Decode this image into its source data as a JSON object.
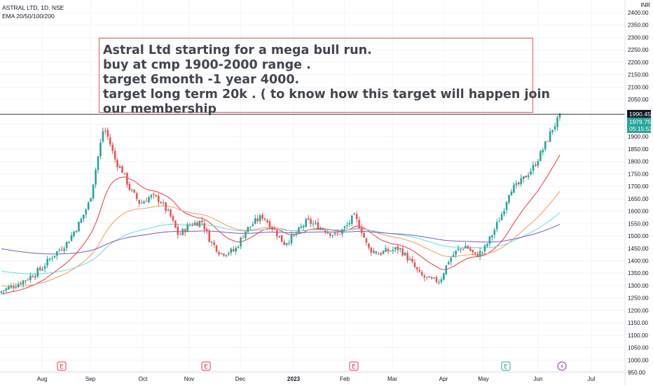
{
  "header": {
    "symbol_line": "ASTRAL LTD, 1D, NSE",
    "indicator_line": "EMA 20/50/100/200"
  },
  "annotation": {
    "lines": [
      "Astral Ltd starting for  a mega bull run.",
      "buy at cmp 1900-2000 range .",
      "target 6month -1 year 4000.",
      "target long term 20k . ( to know how this target will happen join",
      "our membership"
    ]
  },
  "price_axis": {
    "currency": "INR",
    "ticks": [
      2400,
      2350,
      2300,
      2250,
      2200,
      2150,
      2100,
      2050,
      2000,
      1950,
      1900,
      1850,
      1800,
      1750,
      1700,
      1650,
      1600,
      1550,
      1500,
      1450,
      1400,
      1350,
      1300,
      1250,
      1200,
      1150,
      1100,
      1050,
      1000,
      950
    ],
    "tick_labels": [
      "2400.00",
      "2350.00",
      "2300.00",
      "2250.00",
      "2200.00",
      "2150.00",
      "2100.00",
      "2050.00",
      "2000.00",
      "1950.00",
      "1900.00",
      "1850.00",
      "1800.00",
      "1750.00",
      "1700.00",
      "1650.00",
      "1600.00",
      "1550.00",
      "1500.00",
      "1450.00",
      "1400.00",
      "1350.00",
      "1300.00",
      "1250.00",
      "1200.00",
      "1150.00",
      "1100.00",
      "1050.00",
      "1000.00",
      "950.00"
    ],
    "last_high_tag": "1990.45",
    "last_price_tag": "1979.75",
    "countdown_tag": "05:15:52",
    "horizontal_line": 1990.45
  },
  "time_axis": {
    "labels": [
      "Aug",
      "Sep",
      "Oct",
      "Nov",
      "Dec",
      "2023",
      "Feb",
      "Mar",
      "Apr",
      "May",
      "Jun",
      "Jul"
    ]
  },
  "event_markers": [
    {
      "label": "E",
      "kind": "earnings-past"
    },
    {
      "label": "E",
      "kind": "earnings-past"
    },
    {
      "label": "E",
      "kind": "earnings-past"
    },
    {
      "label": "E",
      "kind": "earnings-upcoming"
    },
    {
      "label": "⚡",
      "kind": "split"
    }
  ],
  "colors": {
    "up": "#26a69a",
    "down": "#ef5350",
    "ema20": "#f23645",
    "ema50": "#ff9850",
    "ema100": "#5ee0e0",
    "ema200": "#7e57c2",
    "callout_border": "#e35a5a",
    "grid": "#f0f3fa"
  },
  "chart_data": {
    "type": "candlestick",
    "title": "ASTRAL LTD, 1D, NSE",
    "ylim": [
      920,
      2420
    ],
    "y_axis_side": "right",
    "grid": true,
    "key_points": [
      {
        "period": "early Aug",
        "price": 1275
      },
      {
        "period": "mid Sep",
        "price": 1960
      },
      {
        "period": "early Oct",
        "price": 1600
      },
      {
        "period": "late Oct",
        "price": 1600
      },
      {
        "period": "mid Nov",
        "price": 1430
      },
      {
        "period": "early Dec",
        "price": 1580
      },
      {
        "period": "late Jan",
        "price": 1590
      },
      {
        "period": "mid Feb",
        "price": 1440
      },
      {
        "period": "late Mar",
        "price": 1305
      },
      {
        "period": "mid Apr",
        "price": 1470
      },
      {
        "period": "late Apr",
        "price": 1400
      },
      {
        "period": "mid May",
        "price": 1700
      },
      {
        "period": "mid Jun",
        "price": 1990
      }
    ],
    "series": [
      {
        "name": "EMA 20",
        "role": "ema20"
      },
      {
        "name": "EMA 50",
        "role": "ema50"
      },
      {
        "name": "EMA 100",
        "role": "ema100"
      },
      {
        "name": "EMA 200",
        "role": "ema200"
      }
    ]
  }
}
